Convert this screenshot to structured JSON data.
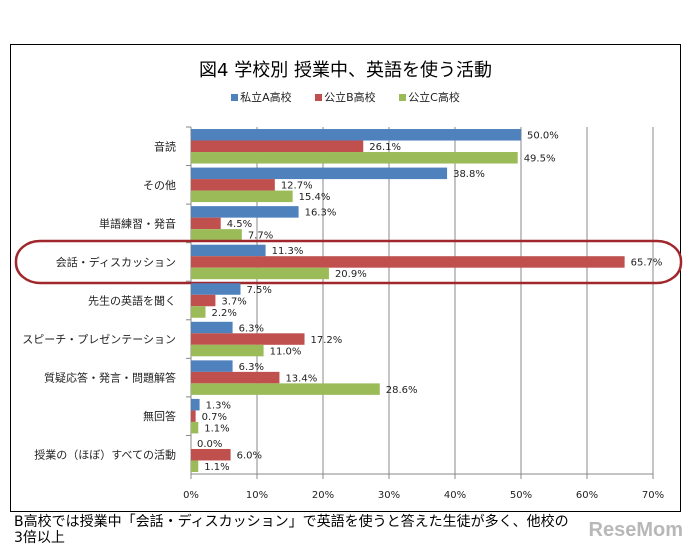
{
  "chart_data": {
    "type": "bar",
    "orientation": "horizontal",
    "title": "図4  学校別  授業中、英語を使う活動",
    "categories": [
      "音読",
      "その他",
      "単語練習・発音",
      "会話・ディスカッション",
      "先生の英語を聞く",
      "スピーチ・プレゼンテーション",
      "質疑応答・発言・問題解答",
      "無回答",
      "授業の（ほぼ）すべての活動"
    ],
    "series": [
      {
        "name": "私立A高校",
        "color": "#4f81bd",
        "values": [
          50.0,
          38.8,
          16.3,
          11.3,
          7.5,
          6.3,
          6.3,
          1.3,
          0.0
        ]
      },
      {
        "name": "公立B高校",
        "color": "#c0504d",
        "values": [
          26.1,
          12.7,
          4.5,
          65.7,
          3.7,
          17.2,
          13.4,
          0.7,
          6.0
        ]
      },
      {
        "name": "公立C高校",
        "color": "#9bbb59",
        "values": [
          49.5,
          15.4,
          7.7,
          20.9,
          2.2,
          11.0,
          28.6,
          1.1,
          1.1
        ]
      }
    ],
    "xlim": [
      0,
      70
    ],
    "xticks": [
      "0%",
      "10%",
      "20%",
      "30%",
      "40%",
      "50%",
      "60%",
      "70%"
    ],
    "grid": true,
    "legend": "top",
    "highlight": {
      "category": "会話・ディスカッション",
      "color": "#a0282c"
    }
  },
  "caption": "B高校では授業中「会話・ディスカッション」で英語を使うと答えた生徒が多く、他校の3倍以上",
  "watermark": "ReseMom"
}
